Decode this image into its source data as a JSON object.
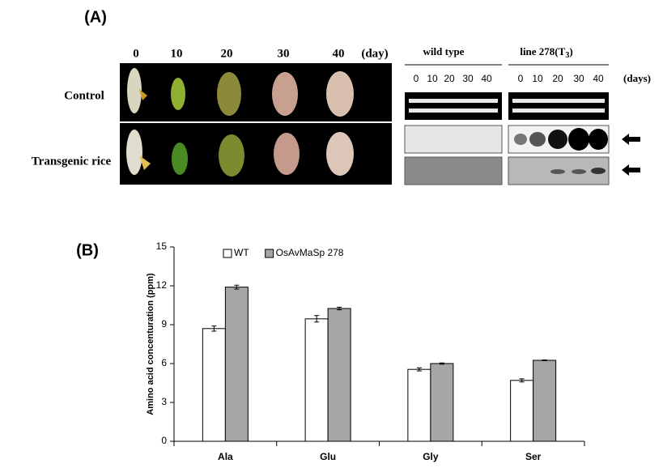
{
  "panel_a": {
    "label": "(A)",
    "days": [
      "0",
      "10",
      "20",
      "30",
      "40"
    ],
    "day_unit": "(day)",
    "rows": [
      "Control",
      "Transgenic rice"
    ],
    "wild_type": "wild type",
    "line_label": "line 278(T",
    "line_subscript": "3",
    "line_close": ")",
    "wild_type_lanes": [
      "0",
      "10",
      "20",
      "30",
      "40"
    ],
    "line_lanes": [
      "0",
      "10",
      "20",
      "30",
      "40"
    ],
    "lane_unit": "(days)"
  },
  "chart_data": {
    "type": "bar",
    "panel_label": "(B)",
    "y_label": "Amino acid concenturation  (ppm)",
    "categories": [
      "Ala",
      "Glu",
      "Gly",
      "Ser"
    ],
    "series": [
      {
        "name": "WT",
        "color": "#ffffff",
        "values": [
          8.7,
          9.45,
          5.55,
          4.7
        ],
        "errors": [
          0.2,
          0.25,
          0.12,
          0.12
        ]
      },
      {
        "name": "OsAvMaSp 278",
        "color": "#a6a6a6",
        "values": [
          11.9,
          10.25,
          6.0,
          6.25
        ],
        "errors": [
          0.15,
          0.1,
          0.05,
          0.03
        ]
      }
    ],
    "ylim": [
      0,
      15
    ],
    "yticks": [
      0,
      3,
      6,
      9,
      12,
      15
    ]
  }
}
